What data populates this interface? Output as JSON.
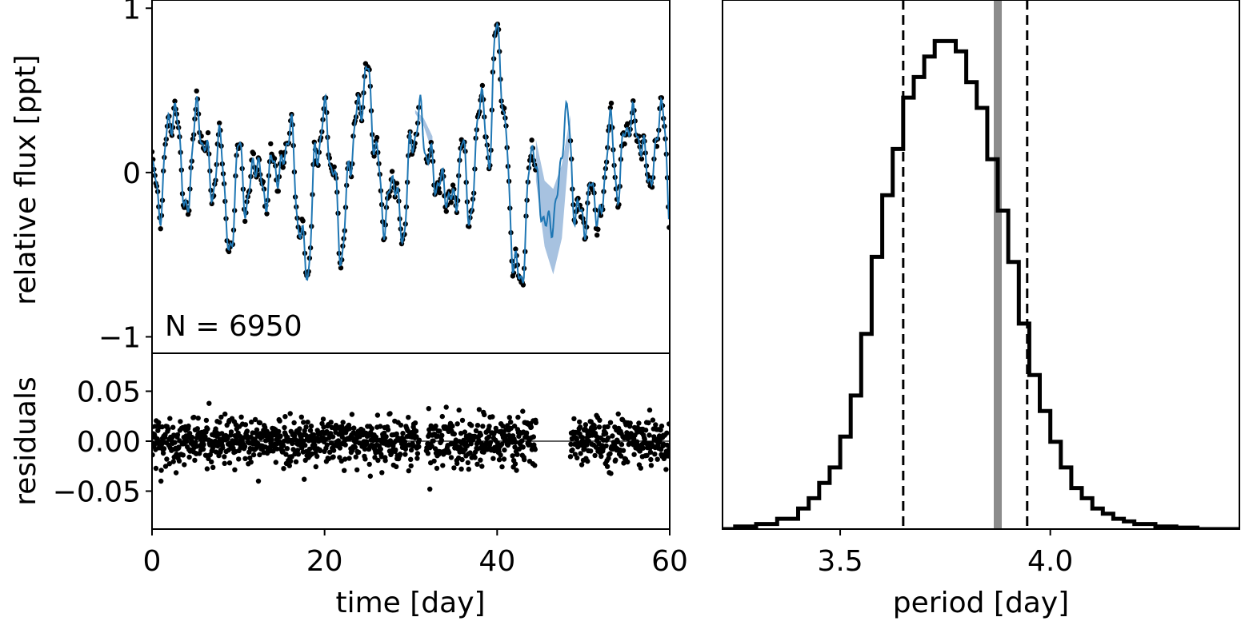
{
  "chart_data": [
    {
      "id": "lightcurve",
      "type": "line",
      "ylabel": "relative flux [ppt]",
      "xlim": [
        0,
        60
      ],
      "ylim": [
        -1.1,
        1.05
      ],
      "yticks": [
        -1,
        0,
        1
      ],
      "yticklabels": [
        "−1",
        "0",
        "1"
      ],
      "annotation": "N = 6950",
      "colors": {
        "data": "#000000",
        "model": "#1f77b4",
        "band": "#8aaed6"
      },
      "series": [
        {
          "role": "gp-prediction",
          "x": [
            0,
            1,
            2,
            3,
            4,
            5,
            6,
            7,
            8,
            9,
            10,
            11,
            12,
            13,
            14,
            15,
            16,
            17,
            18,
            19,
            20,
            21,
            22,
            23,
            24,
            25,
            26,
            27,
            28,
            29,
            30,
            31,
            32,
            33,
            34,
            35,
            36,
            37,
            38,
            39,
            40,
            41,
            42,
            43,
            44,
            45,
            46,
            47,
            48,
            49,
            50,
            51,
            52,
            53,
            54,
            55,
            56,
            57,
            58,
            59,
            60
          ],
          "y": [
            0.0,
            -0.2,
            0.35,
            0.3,
            -0.3,
            0.35,
            0.2,
            -0.1,
            0.2,
            -0.55,
            0.15,
            -0.2,
            0.1,
            -0.15,
            0.05,
            0.0,
            0.3,
            -0.3,
            -0.6,
            0.1,
            0.35,
            0.0,
            -0.5,
            0.1,
            0.4,
            0.6,
            0.1,
            -0.3,
            0.0,
            -0.4,
            0.15,
            0.35,
            0.1,
            -0.05,
            -0.1,
            -0.2,
            0.15,
            -0.3,
            0.5,
            0.1,
            0.9,
            0.2,
            -0.6,
            -0.6,
            0.2,
            -0.2,
            -0.35,
            -0.15,
            0.4,
            -0.2,
            -0.3,
            -0.1,
            -0.3,
            0.3,
            -0.1,
            0.3,
            0.3,
            0.1,
            -0.05,
            0.45,
            -0.2
          ]
        }
      ],
      "uncertainty_band": {
        "x": [
          30.5,
          31.5,
          32.5,
          44.5,
          45.5,
          46.5,
          47.5,
          48.5
        ],
        "upper": [
          0.38,
          0.33,
          0.22,
          0.2,
          -0.05,
          -0.1,
          0.05,
          0.35
        ],
        "lower": [
          0.36,
          0.28,
          0.12,
          -0.05,
          -0.45,
          -0.62,
          -0.4,
          0.25
        ]
      }
    },
    {
      "id": "residuals",
      "type": "scatter",
      "xlabel": "time [day]",
      "ylabel": "residuals",
      "xlim": [
        0,
        60
      ],
      "ylim": [
        -0.088,
        0.088
      ],
      "xticks": [
        0,
        20,
        40,
        60
      ],
      "xticklabels": [
        "0",
        "20",
        "40",
        "60"
      ],
      "yticks": [
        -0.05,
        0.0,
        0.05
      ],
      "yticklabels": [
        "−0.05",
        "0.00",
        "0.05"
      ],
      "segments": [
        [
          0,
          31
        ],
        [
          31.8,
          44.5
        ],
        [
          48.5,
          60
        ]
      ],
      "scatter_std": 0.012,
      "outliers": [
        {
          "x": 32.2,
          "y": -0.048
        },
        {
          "x": 25.3,
          "y": -0.035
        }
      ]
    },
    {
      "id": "period-histogram",
      "type": "histogram",
      "xlabel": "period [day]",
      "xlim": [
        3.22,
        4.45
      ],
      "xticks": [
        3.5,
        4.0
      ],
      "xticklabels": [
        "3.5",
        "4.0"
      ],
      "ylim": [
        0,
        1.03
      ],
      "bin_edges": [
        3.2,
        3.25,
        3.3,
        3.35,
        3.4,
        3.425,
        3.45,
        3.475,
        3.5,
        3.525,
        3.55,
        3.575,
        3.6,
        3.625,
        3.65,
        3.675,
        3.7,
        3.725,
        3.75,
        3.775,
        3.8,
        3.825,
        3.85,
        3.875,
        3.9,
        3.925,
        3.95,
        3.975,
        4.0,
        4.025,
        4.05,
        4.075,
        4.1,
        4.125,
        4.15,
        4.175,
        4.2,
        4.25,
        4.3,
        4.35,
        4.45
      ],
      "counts": [
        0.0,
        0.005,
        0.01,
        0.02,
        0.04,
        0.06,
        0.09,
        0.12,
        0.18,
        0.26,
        0.38,
        0.53,
        0.65,
        0.74,
        0.84,
        0.88,
        0.92,
        0.95,
        0.95,
        0.93,
        0.87,
        0.82,
        0.72,
        0.62,
        0.52,
        0.4,
        0.3,
        0.23,
        0.17,
        0.12,
        0.08,
        0.06,
        0.04,
        0.03,
        0.02,
        0.015,
        0.01,
        0.005,
        0.003,
        0.0
      ],
      "quantile_lines": [
        3.65,
        3.945
      ],
      "true_value": 3.875,
      "colors": {
        "hist": "#000000",
        "true_value": "#8c8c8c"
      }
    }
  ]
}
